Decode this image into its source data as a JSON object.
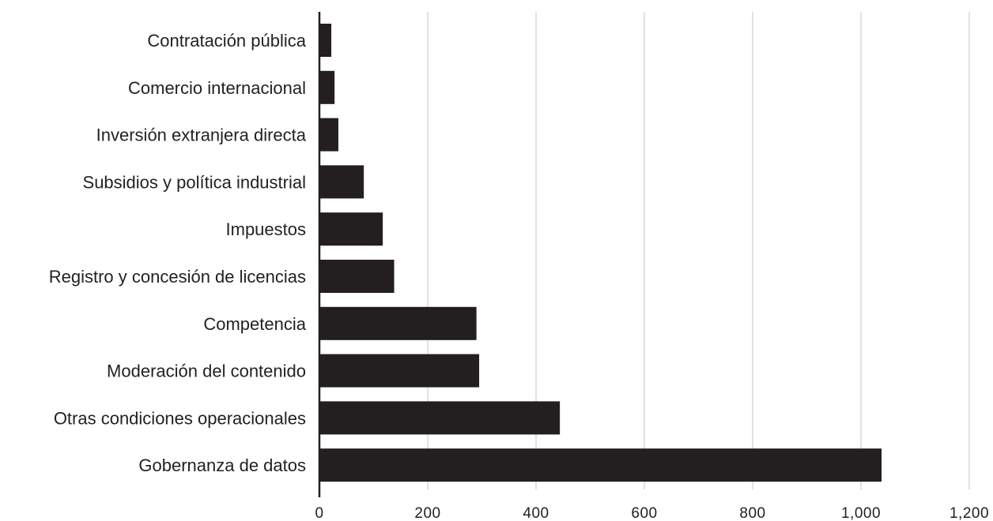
{
  "chart_data": {
    "type": "bar",
    "orientation": "horizontal",
    "categories": [
      "Contratación pública",
      "Comercio internacional",
      "Inversión extranjera directa",
      "Subsidios y política industrial",
      "Impuestos",
      "Registro y concesión de licencias",
      "Competencia",
      "Moderación del contenido",
      "Otras condiciones operacionales",
      "Gobernanza de datos"
    ],
    "values": [
      22,
      28,
      35,
      82,
      117,
      138,
      290,
      295,
      444,
      1038
    ],
    "xlim": [
      0,
      1200
    ],
    "xticks": [
      "0",
      "200",
      "400",
      "600",
      "800",
      "1,000",
      "1,200"
    ],
    "grid": "vertical",
    "title": "",
    "xlabel": "",
    "ylabel": "",
    "colors": {
      "bar": "#231f20",
      "grid": "#cfcfcf",
      "axis": "#231f20",
      "text": "#222222"
    }
  }
}
